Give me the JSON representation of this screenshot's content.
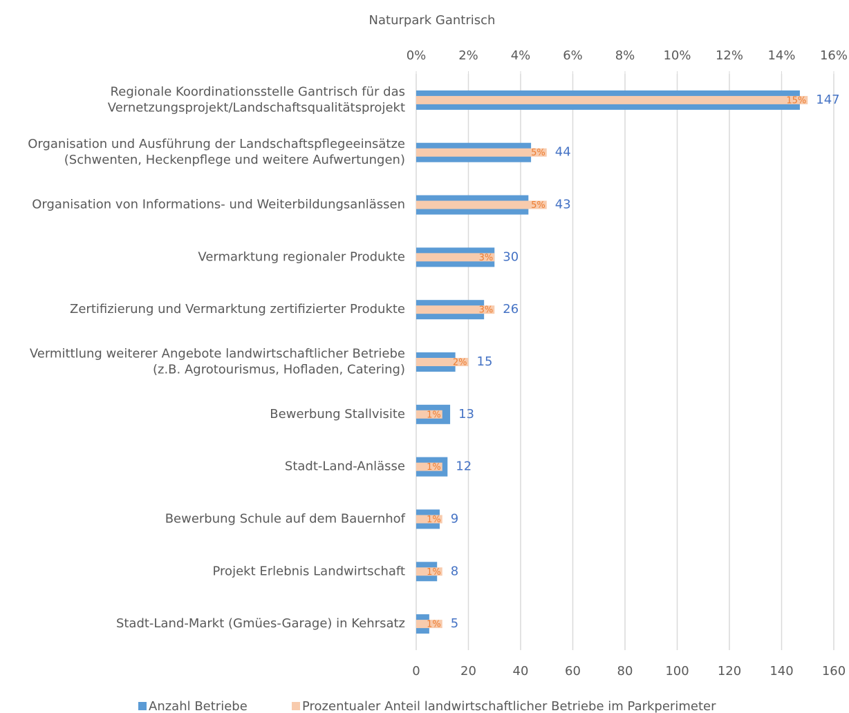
{
  "chart_data": {
    "type": "hbar",
    "title": "Naturpark Gantrisch",
    "categories": [
      "Regionale Koordinationsstelle Gantrisch für das\nVernetzungsprojekt/Landschaftsqualitätsprojekt",
      "Organisation und Ausführung der Landschaftspflegeeinsätze\n(Schwenten, Heckenpflege und weitere Aufwertungen)",
      "Organisation von Informations- und Weiterbildungsanlässen",
      "Vermarktung regionaler Produkte",
      "Zertifizierung und Vermarktung zertifizierter Produkte",
      "Vermittlung weiterer Angebote landwirtschaftlicher Betriebe\n(z.B. Agrotourismus, Hofladen, Catering)",
      "Bewerbung Stallvisite",
      "Stadt-Land-Anlässe",
      "Bewerbung Schule auf dem Bauernhof",
      "Projekt Erlebnis Landwirtschaft",
      "Stadt-Land-Markt (Gmües-Garage) in Kehrsatz"
    ],
    "series": [
      {
        "name": "Anzahl Betriebe",
        "color": "#5b9bd5",
        "label_color": "#4472c4",
        "values": [
          147,
          44,
          43,
          30,
          26,
          15,
          13,
          12,
          9,
          8,
          5
        ]
      },
      {
        "name": "Prozentualer Anteil landwirtschaftlicher Betriebe im Parkperimeter",
        "color": "#f8cbad",
        "label_color": "#ed7d31",
        "axis": "x2",
        "values": [
          15,
          5,
          5,
          3,
          3,
          2,
          1,
          1,
          1,
          1,
          1
        ],
        "value_labels": [
          "15%",
          "5%",
          "5%",
          "3%",
          "3%",
          "2%",
          "1%",
          "1%",
          "1%",
          "1%",
          "1%"
        ]
      }
    ],
    "xlim": [
      0,
      160
    ],
    "xticks": [
      0,
      20,
      40,
      60,
      80,
      100,
      120,
      140,
      160
    ],
    "x2lim": [
      0,
      16
    ],
    "x2ticks": [
      {
        "value": 0,
        "label": "0%"
      },
      {
        "value": 2,
        "label": "2%"
      },
      {
        "value": 4,
        "label": "4%"
      },
      {
        "value": 6,
        "label": "6%"
      },
      {
        "value": 8,
        "label": "8%"
      },
      {
        "value": 10,
        "label": "10%"
      },
      {
        "value": 12,
        "label": "12%"
      },
      {
        "value": 14,
        "label": "14%"
      },
      {
        "value": 16,
        "label": "16%"
      }
    ],
    "grid": true,
    "legend": "bottom"
  }
}
